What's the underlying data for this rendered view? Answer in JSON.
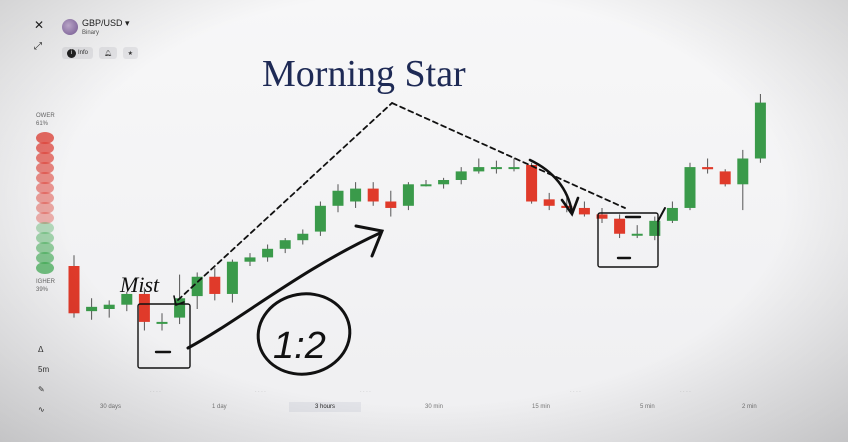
{
  "toolbar": {
    "close_glyph": "✕",
    "expand_glyph": "⤢"
  },
  "asset": {
    "name": "GBP/USD ▾",
    "type": "Binary",
    "flag_icon": "gbp-usd-flag-icon"
  },
  "asset_buttons": {
    "info_label": "Info"
  },
  "power": {
    "upper_label": "OWER",
    "upper_value": "61%",
    "lower_label": "IGHER",
    "lower_value": "39%",
    "lower_level": 0.39
  },
  "side_tools": {
    "timeframe": "5m"
  },
  "timeframes": [
    {
      "label": "30 days"
    },
    {
      "label": "1 day"
    },
    {
      "label": "3 hours",
      "active": true
    },
    {
      "label": "30 min"
    },
    {
      "label": "15 min"
    },
    {
      "label": "5 min"
    },
    {
      "label": "2 min"
    }
  ],
  "annotation": {
    "title": "Morning Star",
    "handwritten_left": "Mist",
    "ratio": "1:2"
  },
  "candles": [
    {
      "o": 6,
      "h": 6.5,
      "l": 3.6,
      "c": 3.8
    },
    {
      "o": 3.9,
      "h": 4.5,
      "l": 3.5,
      "c": 4.1
    },
    {
      "o": 4.0,
      "h": 4.4,
      "l": 3.6,
      "c": 4.2
    },
    {
      "o": 4.2,
      "h": 4.8,
      "l": 3.9,
      "c": 4.7
    },
    {
      "o": 4.7,
      "h": 5.0,
      "l": 3.0,
      "c": 3.4
    },
    {
      "o": 3.4,
      "h": 3.8,
      "l": 3.0,
      "c": 3.4
    },
    {
      "o": 3.6,
      "h": 5.6,
      "l": 3.3,
      "c": 4.5
    },
    {
      "o": 4.6,
      "h": 5.7,
      "l": 4.0,
      "c": 5.5
    },
    {
      "o": 5.5,
      "h": 5.9,
      "l": 4.4,
      "c": 4.7
    },
    {
      "o": 4.7,
      "h": 6.3,
      "l": 4.3,
      "c": 6.2
    },
    {
      "o": 6.2,
      "h": 6.6,
      "l": 6.0,
      "c": 6.4
    },
    {
      "o": 6.4,
      "h": 7.0,
      "l": 6.2,
      "c": 6.8
    },
    {
      "o": 6.8,
      "h": 7.3,
      "l": 6.6,
      "c": 7.2
    },
    {
      "o": 7.2,
      "h": 7.7,
      "l": 7.0,
      "c": 7.5
    },
    {
      "o": 7.6,
      "h": 9.0,
      "l": 7.4,
      "c": 8.8
    },
    {
      "o": 8.8,
      "h": 9.8,
      "l": 8.5,
      "c": 9.5
    },
    {
      "o": 9.0,
      "h": 9.9,
      "l": 8.7,
      "c": 9.6
    },
    {
      "o": 9.6,
      "h": 9.9,
      "l": 8.8,
      "c": 9.0
    },
    {
      "o": 9.0,
      "h": 9.5,
      "l": 8.3,
      "c": 8.7
    },
    {
      "o": 8.8,
      "h": 9.9,
      "l": 8.6,
      "c": 9.8
    },
    {
      "o": 9.8,
      "h": 10.0,
      "l": 9.7,
      "c": 9.8
    },
    {
      "o": 9.8,
      "h": 10.1,
      "l": 9.6,
      "c": 10.0
    },
    {
      "o": 10.0,
      "h": 10.6,
      "l": 9.8,
      "c": 10.4
    },
    {
      "o": 10.4,
      "h": 11.0,
      "l": 10.3,
      "c": 10.6
    },
    {
      "o": 10.6,
      "h": 10.9,
      "l": 10.3,
      "c": 10.6
    },
    {
      "o": 10.6,
      "h": 11.0,
      "l": 10.4,
      "c": 10.6
    },
    {
      "o": 10.7,
      "h": 10.8,
      "l": 8.9,
      "c": 9.0
    },
    {
      "o": 9.1,
      "h": 9.4,
      "l": 8.6,
      "c": 8.8
    },
    {
      "o": 8.8,
      "h": 9.2,
      "l": 8.5,
      "c": 8.7
    },
    {
      "o": 8.7,
      "h": 9.0,
      "l": 8.3,
      "c": 8.4
    },
    {
      "o": 8.4,
      "h": 8.7,
      "l": 8.0,
      "c": 8.2
    },
    {
      "o": 8.2,
      "h": 8.4,
      "l": 7.3,
      "c": 7.5
    },
    {
      "o": 7.5,
      "h": 7.9,
      "l": 7.3,
      "c": 7.5
    },
    {
      "o": 7.4,
      "h": 8.3,
      "l": 7.2,
      "c": 8.1
    },
    {
      "o": 8.1,
      "h": 9.0,
      "l": 8.0,
      "c": 8.7
    },
    {
      "o": 8.7,
      "h": 10.8,
      "l": 8.6,
      "c": 10.6
    },
    {
      "o": 10.6,
      "h": 11.0,
      "l": 10.3,
      "c": 10.5
    },
    {
      "o": 10.4,
      "h": 10.5,
      "l": 9.7,
      "c": 9.8
    },
    {
      "o": 9.8,
      "h": 11.4,
      "l": 8.6,
      "c": 11.0
    },
    {
      "o": 11.0,
      "h": 14.0,
      "l": 10.8,
      "c": 13.6
    }
  ],
  "colors": {
    "up": "#3a9a4a",
    "down": "#e03a2a",
    "ink": "#111111",
    "title": "#1e2a55"
  }
}
